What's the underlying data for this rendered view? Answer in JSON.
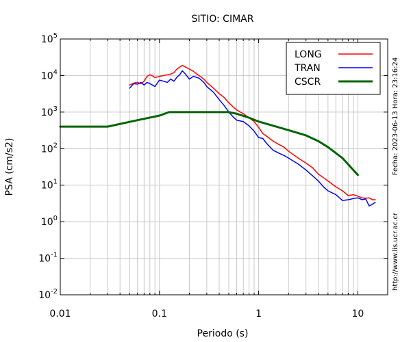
{
  "chart_data": {
    "type": "line",
    "title": "SITIO: CIMAR",
    "xlabel": "Periodo (s)",
    "ylabel": "PSA (cm/s2)",
    "xscale": "log",
    "yscale": "log",
    "xlim": [
      0.01,
      20
    ],
    "ylim": [
      0.01,
      100000
    ],
    "grid": true,
    "legend_position": "top-right",
    "x_ticks": [
      {
        "value": 0.01,
        "label": "0.01"
      },
      {
        "value": 0.1,
        "label": "0.1"
      },
      {
        "value": 1,
        "label": "1"
      },
      {
        "value": 10,
        "label": "10"
      }
    ],
    "y_ticks": [
      {
        "value": 0.01,
        "base": "10",
        "exp": "-2"
      },
      {
        "value": 0.1,
        "base": "10",
        "exp": "-1"
      },
      {
        "value": 1,
        "base": "10",
        "exp": "0"
      },
      {
        "value": 10,
        "base": "10",
        "exp": "1"
      },
      {
        "value": 100,
        "base": "10",
        "exp": "2"
      },
      {
        "value": 1000,
        "base": "10",
        "exp": "3"
      },
      {
        "value": 10000,
        "base": "10",
        "exp": "4"
      },
      {
        "value": 100000,
        "base": "10",
        "exp": "5"
      }
    ],
    "series": [
      {
        "name": "LONG",
        "color": "#ff0000",
        "points": [
          [
            0.05,
            5500
          ],
          [
            0.055,
            6200
          ],
          [
            0.06,
            6500
          ],
          [
            0.065,
            6000
          ],
          [
            0.07,
            7000
          ],
          [
            0.075,
            9500
          ],
          [
            0.08,
            10500
          ],
          [
            0.085,
            9800
          ],
          [
            0.09,
            8800
          ],
          [
            0.1,
            9500
          ],
          [
            0.11,
            10000
          ],
          [
            0.12,
            10500
          ],
          [
            0.13,
            11000
          ],
          [
            0.14,
            12000
          ],
          [
            0.15,
            15000
          ],
          [
            0.16,
            17000
          ],
          [
            0.17,
            19000
          ],
          [
            0.18,
            17500
          ],
          [
            0.2,
            15000
          ],
          [
            0.22,
            13000
          ],
          [
            0.25,
            10000
          ],
          [
            0.28,
            8000
          ],
          [
            0.3,
            6500
          ],
          [
            0.35,
            4500
          ],
          [
            0.4,
            3200
          ],
          [
            0.45,
            2500
          ],
          [
            0.5,
            1800
          ],
          [
            0.55,
            1400
          ],
          [
            0.6,
            1150
          ],
          [
            0.7,
            900
          ],
          [
            0.8,
            700
          ],
          [
            0.9,
            550
          ],
          [
            1.0,
            380
          ],
          [
            1.1,
            260
          ],
          [
            1.2,
            220
          ],
          [
            1.4,
            160
          ],
          [
            1.6,
            130
          ],
          [
            1.8,
            110
          ],
          [
            2.0,
            85
          ],
          [
            2.5,
            55
          ],
          [
            3.0,
            40
          ],
          [
            3.5,
            30
          ],
          [
            4.0,
            20
          ],
          [
            4.5,
            16
          ],
          [
            5.0,
            13
          ],
          [
            6.0,
            9
          ],
          [
            7.0,
            7
          ],
          [
            8.0,
            5.2
          ],
          [
            9.0,
            5.5
          ],
          [
            10.0,
            5.0
          ],
          [
            11.0,
            4.5
          ],
          [
            12.0,
            4.4
          ],
          [
            13.0,
            4.5
          ],
          [
            14.0,
            4.0
          ],
          [
            15.0,
            4.0
          ]
        ]
      },
      {
        "name": "TRAN",
        "color": "#0000ff",
        "points": [
          [
            0.05,
            4500
          ],
          [
            0.055,
            6000
          ],
          [
            0.06,
            5800
          ],
          [
            0.065,
            6500
          ],
          [
            0.07,
            5500
          ],
          [
            0.075,
            6500
          ],
          [
            0.08,
            6000
          ],
          [
            0.085,
            5500
          ],
          [
            0.09,
            5000
          ],
          [
            0.1,
            7500
          ],
          [
            0.11,
            7000
          ],
          [
            0.12,
            6500
          ],
          [
            0.13,
            8000
          ],
          [
            0.14,
            7000
          ],
          [
            0.15,
            9000
          ],
          [
            0.16,
            10500
          ],
          [
            0.17,
            13500
          ],
          [
            0.18,
            11500
          ],
          [
            0.2,
            8000
          ],
          [
            0.22,
            9500
          ],
          [
            0.25,
            8500
          ],
          [
            0.28,
            6500
          ],
          [
            0.3,
            5000
          ],
          [
            0.35,
            3500
          ],
          [
            0.4,
            2200
          ],
          [
            0.45,
            1500
          ],
          [
            0.5,
            1000
          ],
          [
            0.55,
            750
          ],
          [
            0.6,
            600
          ],
          [
            0.7,
            550
          ],
          [
            0.8,
            420
          ],
          [
            0.9,
            300
          ],
          [
            1.0,
            200
          ],
          [
            1.1,
            190
          ],
          [
            1.2,
            140
          ],
          [
            1.4,
            90
          ],
          [
            1.6,
            75
          ],
          [
            1.8,
            65
          ],
          [
            2.0,
            55
          ],
          [
            2.5,
            38
          ],
          [
            3.0,
            26
          ],
          [
            3.5,
            18
          ],
          [
            4.0,
            13
          ],
          [
            4.5,
            9
          ],
          [
            5.0,
            7
          ],
          [
            6.0,
            5.5
          ],
          [
            7.0,
            3.8
          ],
          [
            8.0,
            4.0
          ],
          [
            9.0,
            4.3
          ],
          [
            10.0,
            4.5
          ],
          [
            11.0,
            4.0
          ],
          [
            12.0,
            4.2
          ],
          [
            13.0,
            2.7
          ],
          [
            14.0,
            3.0
          ],
          [
            15.0,
            3.4
          ]
        ]
      },
      {
        "name": "CSCR",
        "color": "#006400",
        "points": [
          [
            0.01,
            400
          ],
          [
            0.03,
            400
          ],
          [
            0.06,
            600
          ],
          [
            0.1,
            800
          ],
          [
            0.125,
            1000
          ],
          [
            0.2,
            1000
          ],
          [
            0.3,
            1000
          ],
          [
            0.5,
            1000
          ],
          [
            0.6,
            900
          ],
          [
            0.8,
            700
          ],
          [
            1.0,
            550
          ],
          [
            1.5,
            400
          ],
          [
            2.0,
            320
          ],
          [
            3.0,
            230
          ],
          [
            4.0,
            160
          ],
          [
            5.0,
            110
          ],
          [
            7.0,
            55
          ],
          [
            10.0,
            19
          ]
        ]
      }
    ]
  },
  "annotations": {
    "side_date": "Fecha: 2023-06-13  Hora: 23:16:24",
    "side_url": "http://www.lis.ucr.ac.cr"
  }
}
